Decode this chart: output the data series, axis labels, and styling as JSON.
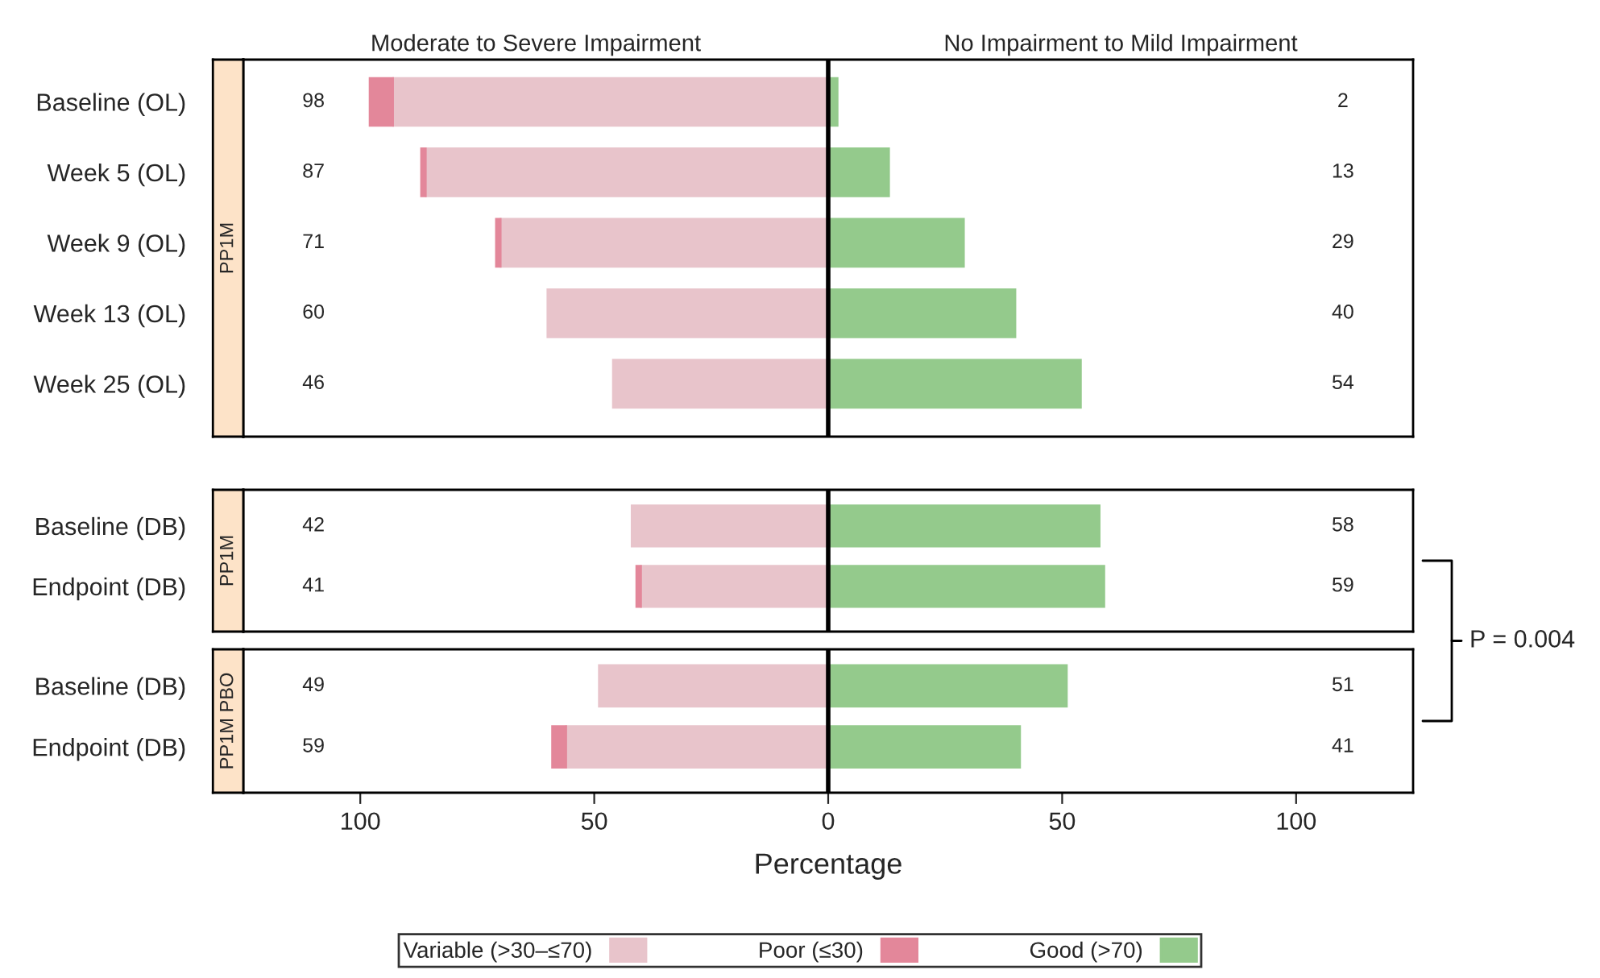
{
  "chart_data": [
    {
      "type": "bar",
      "orientation": "horizontal",
      "stacked": true,
      "title": "PP1M",
      "annotations": [
        "Moderate to Severe Impairment",
        "No Impairment to Mild Impairment",
        "98",
        "2",
        "87",
        "13",
        "71",
        "29",
        "60",
        "40",
        "46",
        "54"
      ],
      "categories": [
        "Baseline (OL)",
        "Week 5 (OL)",
        "Week 9 (OL)",
        "Week 13 (OL)",
        "Week 25 (OL)"
      ],
      "series": [
        {
          "color": "#e8c4cb",
          "values": [
            -93,
            -86,
            -70,
            -60,
            -46
          ]
        },
        {
          "color": "#e3879a",
          "values": [
            -5,
            -1,
            -1,
            0,
            0
          ]
        },
        {
          "color": "#94ca8c",
          "values": [
            2,
            13,
            29,
            40,
            54
          ]
        }
      ],
      "xlim": [
        -125,
        125
      ],
      "tick_labels": "y",
      "grid": false,
      "ref_lines": [
        {
          "axis": "x",
          "value": 0,
          "color": "#000000"
        }
      ]
    },
    {
      "type": "bar",
      "orientation": "horizontal",
      "stacked": true,
      "title": "PP1M",
      "annotations": [
        "P = 0.004",
        "42",
        "58",
        "41",
        "59"
      ],
      "categories": [
        "Baseline (DB)",
        "Endpoint (DB)"
      ],
      "series": [
        {
          "color": "#e8c4cb",
          "values": [
            -42,
            -40
          ]
        },
        {
          "color": "#e3879a",
          "values": [
            0,
            -1
          ]
        },
        {
          "color": "#94ca8c",
          "values": [
            58,
            59
          ]
        }
      ],
      "xlim": [
        -125,
        125
      ],
      "tick_labels": "y",
      "grid": false,
      "ref_lines": [
        {
          "axis": "x",
          "value": 0,
          "color": "#000000"
        }
      ]
    },
    {
      "type": "bar",
      "orientation": "horizontal",
      "stacked": true,
      "title": "PP1M PBO",
      "xlabel": "Percentage",
      "annotations": [
        "49",
        "51",
        "59",
        "41"
      ],
      "categories": [
        "Baseline (DB)",
        "Endpoint (DB)"
      ],
      "series": [
        {
          "name": "Variable (>30–≤70)",
          "color": "#e8c4cb",
          "values": [
            -49,
            -56
          ]
        },
        {
          "name": "Poor (≤30)",
          "color": "#e3879a",
          "values": [
            0,
            -3
          ]
        },
        {
          "name": "Good (>70)",
          "color": "#94ca8c",
          "values": [
            51,
            41
          ]
        }
      ],
      "xlim": [
        -125,
        125
      ],
      "xticks": [
        {
          "value": -100,
          "label": "100"
        },
        {
          "value": -50,
          "label": "50"
        },
        0,
        50,
        100
      ],
      "grid": false,
      "legend": "bottom",
      "ref_lines": [
        {
          "axis": "x",
          "value": 0,
          "color": "#000000"
        }
      ]
    }
  ]
}
